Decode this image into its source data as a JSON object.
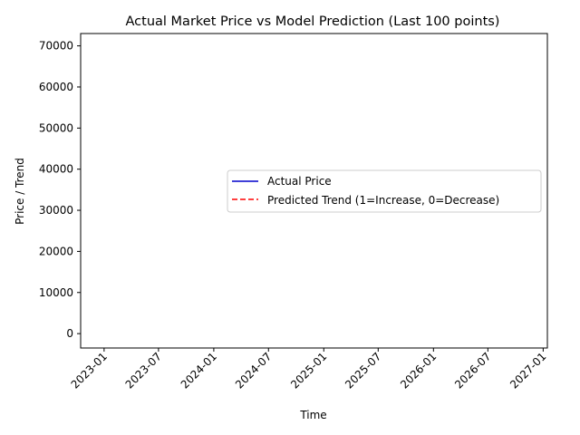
{
  "chart_data": {
    "type": "line",
    "title": "Actual Market Price vs Model Prediction (Last 100 points)",
    "xlabel": "Time",
    "ylabel": "Price / Trend",
    "x_ticks": [
      "2023-01",
      "2023-07",
      "2024-01",
      "2024-07",
      "2025-01",
      "2025-07",
      "2026-01",
      "2026-07",
      "2027-01"
    ],
    "y_ticks": [
      0,
      10000,
      20000,
      30000,
      40000,
      50000,
      60000,
      70000
    ],
    "ylim": [
      -3500,
      73000
    ],
    "xlim": [
      "2022-10-15",
      "2027-01-15"
    ],
    "grid": false,
    "legend_position": "center-right",
    "series": [
      {
        "name": "Actual Price",
        "color": "#0000cc",
        "style": "solid",
        "values": []
      },
      {
        "name": "Predicted Trend (1=Increase, 0=Decrease)",
        "color": "#ff0000",
        "style": "dashed",
        "values": []
      }
    ]
  }
}
